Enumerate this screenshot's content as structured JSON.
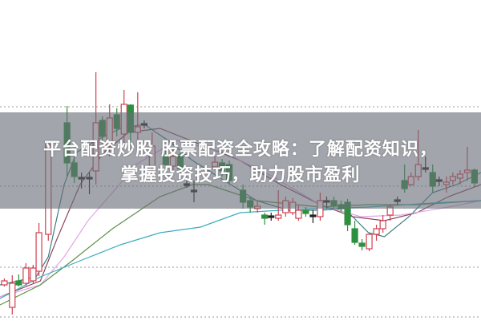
{
  "overlay": {
    "title_line1": "平台配资炒股 股票配资全攻略：了解配资知识，",
    "title_line2": "掌握投资技巧，助力股市盈利"
  },
  "chart_data": {
    "type": "candlestick",
    "grid": true,
    "grid_style": "dotted",
    "grid_levels": [
      26.7,
      16.8,
      6.7,
      0.5
    ],
    "ylim": [
      0,
      40
    ],
    "xlim": [
      0,
      66.7
    ],
    "colors": {
      "up": "#d2404f",
      "down": "#2f8f3f",
      "doji": "#222222"
    },
    "candles": [
      [
        0.6,
        4.5,
        5.3,
        4.3,
        5.0
      ],
      [
        1.7,
        1.7,
        5.7,
        0.8,
        4.7
      ],
      [
        2.6,
        5.0,
        5.8,
        4.3,
        4.5
      ],
      [
        3.6,
        4.7,
        7.2,
        4.4,
        6.6
      ],
      [
        4.6,
        5.0,
        7.0,
        4.6,
        6.6
      ],
      [
        5.4,
        6.2,
        12.2,
        5.6,
        11.0
      ],
      [
        6.7,
        10.8,
        22.0,
        10.0,
        22.0
      ],
      [
        9.3,
        24.7,
        26.8,
        18.0,
        19.7
      ],
      [
        10.3,
        19.7,
        20.5,
        17.2,
        18.0
      ],
      [
        11.3,
        17.8,
        18.5,
        16.5,
        17.9
      ],
      [
        12.4,
        17.8,
        18.5,
        15.8,
        17.9
      ],
      [
        13.3,
        18.7,
        31.0,
        17.0,
        24.7
      ],
      [
        14.2,
        25.0,
        25.5,
        22.0,
        23.0
      ],
      [
        15.2,
        21.7,
        27.0,
        20.5,
        25.3
      ],
      [
        16.2,
        25.7,
        26.5,
        23.0,
        24.0
      ],
      [
        17.2,
        23.3,
        28.8,
        22.0,
        27.0
      ],
      [
        18.1,
        26.9,
        27.0,
        22.5,
        23.5
      ],
      [
        19.1,
        23.5,
        28.5,
        22.5,
        24.2
      ],
      [
        20.0,
        24.5,
        25.0,
        24.0,
        24.6
      ],
      [
        21.1,
        19.3,
        23.5,
        18.5,
        21.8
      ],
      [
        23.0,
        20.7,
        21.5,
        18.5,
        19.5
      ],
      [
        24.0,
        19.3,
        21.5,
        18.8,
        20.5
      ],
      [
        25.0,
        20.7,
        21.2,
        18.2,
        19.0
      ],
      [
        25.9,
        17.0,
        17.5,
        16.6,
        17.1
      ],
      [
        26.9,
        16.2,
        17.5,
        14.8,
        16.3
      ],
      [
        29.8,
        19.2,
        20.5,
        18.8,
        19.8
      ],
      [
        30.8,
        19.7,
        20.2,
        18.0,
        18.7
      ],
      [
        31.8,
        19.5,
        20.0,
        17.0,
        17.5
      ],
      [
        33.7,
        16.3,
        17.0,
        14.0,
        14.8
      ],
      [
        34.7,
        15.0,
        15.5,
        13.5,
        14.2
      ],
      [
        35.7,
        14.0,
        15.0,
        13.5,
        14.3
      ],
      [
        36.7,
        13.2,
        13.5,
        12.0,
        12.8
      ],
      [
        37.6,
        13.0,
        13.5,
        12.5,
        13.1
      ],
      [
        38.6,
        12.8,
        16.3,
        12.5,
        13.2
      ],
      [
        39.6,
        13.5,
        15.5,
        13.0,
        15.0
      ],
      [
        40.6,
        13.5,
        15.3,
        13.2,
        14.8
      ],
      [
        41.4,
        12.8,
        14.5,
        12.5,
        13.8
      ],
      [
        42.4,
        13.8,
        14.2,
        13.0,
        13.4
      ],
      [
        43.4,
        13.2,
        13.8,
        12.2,
        13.0
      ],
      [
        44.4,
        13.0,
        16.0,
        12.5,
        15.0
      ],
      [
        45.3,
        15.0,
        15.5,
        14.0,
        14.8
      ],
      [
        46.3,
        15.0,
        15.5,
        14.0,
        14.4
      ],
      [
        47.3,
        14.5,
        15.0,
        13.5,
        14.0
      ],
      [
        48.2,
        14.8,
        15.2,
        11.2,
        12.0
      ],
      [
        49.2,
        11.5,
        12.5,
        9.5,
        9.8
      ],
      [
        50.2,
        9.7,
        10.2,
        8.8,
        9.3
      ],
      [
        51.2,
        9.0,
        11.0,
        8.7,
        10.8
      ],
      [
        52.2,
        10.8,
        12.0,
        10.0,
        11.5
      ],
      [
        53.1,
        11.5,
        13.2,
        11.0,
        12.5
      ],
      [
        54.1,
        13.2,
        14.5,
        12.5,
        14.2
      ],
      [
        55.1,
        15.0,
        15.5,
        14.5,
        15.1
      ],
      [
        56.1,
        17.5,
        19.5,
        16.0,
        16.5
      ],
      [
        57.0,
        17.0,
        18.5,
        16.8,
        18.0
      ],
      [
        58.0,
        18.0,
        23.8,
        17.5,
        19.5
      ],
      [
        59.0,
        19.0,
        20.5,
        18.5,
        19.1
      ],
      [
        60.0,
        18.5,
        19.5,
        16.0,
        16.8
      ],
      [
        60.9,
        17.5,
        18.0,
        16.8,
        17.6
      ],
      [
        61.9,
        17.0,
        18.0,
        16.0,
        17.3
      ],
      [
        62.8,
        17.5,
        18.5,
        17.0,
        18.0
      ],
      [
        63.8,
        17.8,
        18.8,
        17.0,
        18.3
      ],
      [
        64.8,
        18.5,
        21.7,
        17.5,
        18.8
      ],
      [
        65.8,
        18.8,
        19.0,
        16.8,
        17.2
      ]
    ],
    "moving_averages": [
      {
        "color": "#3b7f86",
        "points": [
          [
            0,
            4.5
          ],
          [
            5,
            5.5
          ],
          [
            6.7,
            8
          ],
          [
            8.9,
            17
          ],
          [
            10.6,
            21
          ],
          [
            13.3,
            22.5
          ],
          [
            16.7,
            24
          ],
          [
            20,
            24.5
          ],
          [
            23.3,
            22.5
          ],
          [
            26.7,
            20
          ],
          [
            31.1,
            17.5
          ],
          [
            35.6,
            15
          ],
          [
            40,
            13.8
          ],
          [
            44.4,
            13.8
          ],
          [
            47.8,
            14
          ],
          [
            51.1,
            11
          ],
          [
            53.3,
            10.5
          ],
          [
            56.7,
            13
          ],
          [
            60,
            16
          ],
          [
            63.3,
            17
          ],
          [
            66.7,
            18.5
          ]
        ]
      },
      {
        "color": "#8a4a5e",
        "points": [
          [
            0,
            3
          ],
          [
            5.6,
            5
          ],
          [
            7.8,
            10
          ],
          [
            11.1,
            17
          ],
          [
            14.4,
            21
          ],
          [
            17.8,
            23.5
          ],
          [
            22.2,
            24
          ],
          [
            27.8,
            22
          ],
          [
            33.3,
            20
          ],
          [
            38.9,
            17
          ],
          [
            44.4,
            14.5
          ],
          [
            48.9,
            13
          ],
          [
            53.3,
            12.5
          ],
          [
            57.8,
            13.5
          ],
          [
            62.2,
            15.5
          ],
          [
            66.7,
            17
          ]
        ]
      },
      {
        "color": "#e3a6e6",
        "points": [
          [
            0,
            3
          ],
          [
            5.6,
            4.5
          ],
          [
            8.9,
            8
          ],
          [
            12.2,
            12.5
          ],
          [
            15.6,
            16
          ],
          [
            18.9,
            19.5
          ],
          [
            24.4,
            22.5
          ],
          [
            31.1,
            21
          ],
          [
            37.8,
            18
          ],
          [
            44.4,
            14.5
          ],
          [
            50,
            13
          ],
          [
            55.6,
            13.2
          ],
          [
            62.2,
            14.2
          ],
          [
            66.7,
            15
          ]
        ]
      },
      {
        "color": "#5e8f48",
        "points": [
          [
            0,
            2
          ],
          [
            5.6,
            4.5
          ],
          [
            10,
            7.5
          ],
          [
            15.6,
            11.5
          ],
          [
            22.2,
            15.5
          ],
          [
            26.7,
            17
          ],
          [
            28.9,
            17
          ],
          [
            35.6,
            15
          ],
          [
            44.4,
            14.2
          ],
          [
            51.1,
            14.5
          ],
          [
            57.8,
            14.5
          ],
          [
            66.7,
            15
          ]
        ]
      },
      {
        "color": "#3aaebe",
        "points": [
          [
            0,
            2.8
          ],
          [
            5.6,
            5.5
          ],
          [
            11.1,
            7.5
          ],
          [
            16.7,
            9.5
          ],
          [
            22.2,
            11
          ],
          [
            27.8,
            11.7
          ],
          [
            33.3,
            13.5
          ],
          [
            38.9,
            13.8
          ],
          [
            44.4,
            14
          ],
          [
            51.1,
            14.2
          ],
          [
            60,
            14.7
          ],
          [
            66.7,
            15
          ]
        ]
      }
    ]
  }
}
